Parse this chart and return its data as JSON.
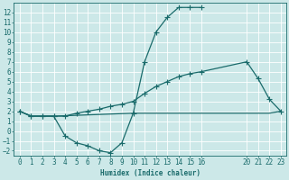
{
  "title": "",
  "xlabel": "Humidex (Indice chaleur)",
  "background_color": "#cce8e8",
  "grid_color": "#ffffff",
  "line_color": "#1a6b6b",
  "series1_x": [
    0,
    1,
    2,
    3,
    4,
    5,
    6,
    7,
    8,
    9,
    10,
    11,
    12,
    13,
    14,
    15,
    16
  ],
  "series1_y": [
    2.0,
    1.5,
    1.5,
    1.5,
    -0.5,
    -1.2,
    -1.5,
    -2.0,
    -2.2,
    -1.2,
    1.8,
    7.0,
    10.0,
    11.5,
    12.5,
    12.5,
    12.5
  ],
  "series2_x": [
    0,
    1,
    2,
    3,
    4,
    5,
    6,
    7,
    8,
    9,
    10,
    11,
    12,
    13,
    14,
    15,
    16,
    20,
    21,
    22,
    23
  ],
  "series2_y": [
    2.0,
    1.5,
    1.5,
    1.5,
    1.5,
    1.8,
    2.0,
    2.2,
    2.5,
    2.7,
    3.0,
    3.8,
    4.5,
    5.0,
    5.5,
    5.8,
    6.0,
    7.0,
    5.3,
    3.2,
    2.0
  ],
  "series3_x": [
    0,
    1,
    2,
    3,
    10,
    16,
    20,
    21,
    22,
    23
  ],
  "series3_y": [
    2.0,
    1.5,
    1.5,
    1.5,
    1.8,
    1.8,
    1.8,
    1.8,
    1.8,
    2.0
  ],
  "xlim_left": -0.5,
  "xlim_right": 23.5,
  "ylim_bottom": -2.5,
  "ylim_top": 13.0,
  "xticks": [
    0,
    1,
    2,
    3,
    4,
    5,
    6,
    7,
    8,
    9,
    10,
    11,
    12,
    13,
    14,
    15,
    16,
    20,
    21,
    22,
    23
  ],
  "yticks": [
    -2,
    -1,
    0,
    1,
    2,
    3,
    4,
    5,
    6,
    7,
    8,
    9,
    10,
    11,
    12
  ],
  "fontsize": 5.5,
  "line_width": 0.9,
  "marker_size": 2.5
}
